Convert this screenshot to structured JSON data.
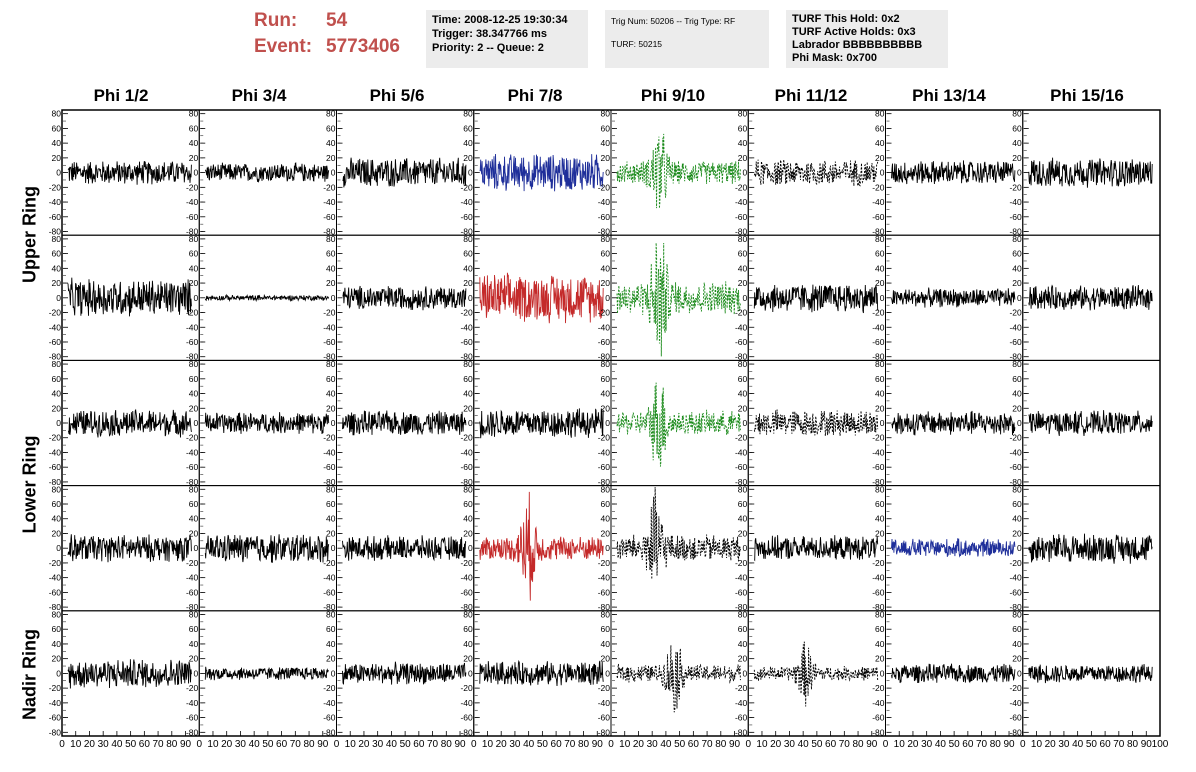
{
  "header": {
    "run_label": "Run:",
    "run_value": "54",
    "event_label": "Event:",
    "event_value": "5773406"
  },
  "info_box_1": {
    "time": "Time: 2008-12-25 19:30:34",
    "trigger": "Trigger: 38.347766 ms",
    "priority": "Priority: 2 -- Queue: 2"
  },
  "info_box_2": {
    "trig": "Trig Num: 50206 -- Trig Type: RF",
    "turf": "TURF: 50215"
  },
  "info_box_3": {
    "this_hold": "TURF This Hold: 0x2",
    "active_holds": "TURF Active Holds: 0x3",
    "labrador": "Labrador BBBBBBBBBB",
    "phi_mask": "Phi Mask: 0x700"
  },
  "columns": [
    "Phi 1/2",
    "Phi 3/4",
    "Phi 5/6",
    "Phi 7/8",
    "Phi 9/10",
    "Phi 11/12",
    "Phi 13/14",
    "Phi 15/16"
  ],
  "rows": [
    "Upper Ring",
    "Lower Ring",
    "Nadir Ring"
  ],
  "y_ticks": [
    "80",
    "60",
    "40",
    "20",
    "0",
    "-20",
    "-40",
    "-60",
    "-80"
  ],
  "x_ticks": [
    "0",
    "10",
    "20",
    "30",
    "40",
    "50",
    "60",
    "70",
    "80",
    "90",
    "100"
  ],
  "colors": {
    "header_red": "#c0504d",
    "trace_black": "#000000",
    "trace_blue": "#1f2f9a",
    "trace_red": "#c42a2a",
    "trace_green": "#1a8a1a",
    "info_bg": "#ececec"
  },
  "chart_data": {
    "type": "line",
    "grid_rows": 5,
    "grid_cols": 8,
    "xlim": [
      0,
      100
    ],
    "ylim": [
      -85,
      85
    ],
    "highlighted_panels": [
      {
        "row": 0,
        "col": 3,
        "color": "blue",
        "style": "solid"
      },
      {
        "row": 1,
        "col": 3,
        "color": "red",
        "style": "solid"
      },
      {
        "row": 3,
        "col": 3,
        "color": "red",
        "style": "solid"
      },
      {
        "row": 3,
        "col": 6,
        "color": "blue",
        "style": "solid"
      },
      {
        "row": 0,
        "col": 4,
        "color": "green",
        "style": "dashed"
      },
      {
        "row": 1,
        "col": 4,
        "color": "green",
        "style": "dashed"
      },
      {
        "row": 2,
        "col": 4,
        "color": "green",
        "style": "dashed"
      },
      {
        "row": 0,
        "col": 5,
        "color": "black",
        "style": "dashed"
      },
      {
        "row": 2,
        "col": 5,
        "color": "black",
        "style": "dashed"
      },
      {
        "row": 3,
        "col": 4,
        "color": "black",
        "style": "dashed"
      },
      {
        "row": 4,
        "col": 4,
        "color": "black",
        "style": "dashed"
      },
      {
        "row": 4,
        "col": 5,
        "color": "black",
        "style": "dashed"
      }
    ],
    "panel_amplitude": [
      [
        18,
        14,
        22,
        28,
        38,
        20,
        18,
        22
      ],
      [
        28,
        4,
        18,
        36,
        55,
        22,
        14,
        18
      ],
      [
        20,
        16,
        18,
        22,
        40,
        20,
        18,
        18
      ],
      [
        20,
        22,
        18,
        40,
        45,
        18,
        14,
        22
      ],
      [
        22,
        10,
        16,
        18,
        30,
        24,
        14,
        14
      ]
    ],
    "burst_panels": [
      {
        "row": 0,
        "col": 4,
        "center_x": 33
      },
      {
        "row": 1,
        "col": 4,
        "center_x": 33
      },
      {
        "row": 2,
        "col": 4,
        "center_x": 33
      },
      {
        "row": 3,
        "col": 3,
        "center_x": 38
      },
      {
        "row": 3,
        "col": 4,
        "center_x": 30
      },
      {
        "row": 4,
        "col": 4,
        "center_x": 45
      },
      {
        "row": 4,
        "col": 5,
        "center_x": 40
      }
    ]
  }
}
